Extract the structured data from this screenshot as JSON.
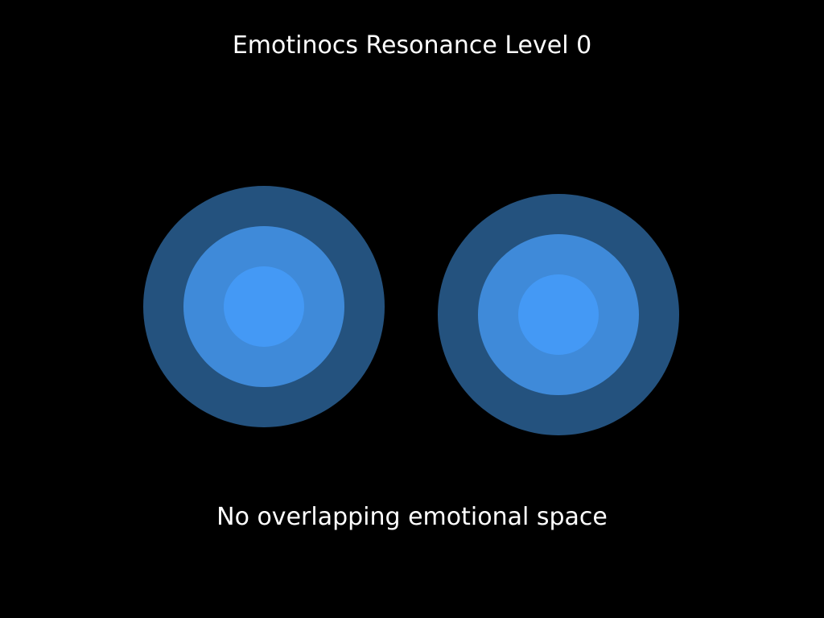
{
  "title": "Emotinocs Resonance Level 0",
  "caption": "No overlapping emotional space",
  "colors": {
    "background": "#000000",
    "text": "#ffffff",
    "outer_ring": "#24527e",
    "middle_ring": "#3f8ad9",
    "inner_core": "#4499f5"
  },
  "entities": [
    {
      "name": "left-entity"
    },
    {
      "name": "right-entity"
    }
  ]
}
